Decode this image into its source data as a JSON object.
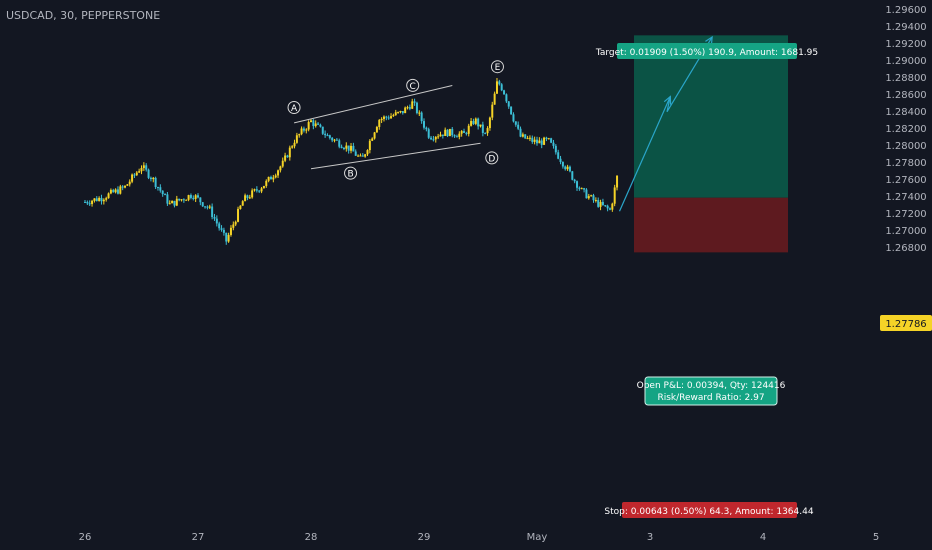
{
  "header": {
    "symbol_label": "USDCAD, 30, PEPPERSTONE"
  },
  "colors": {
    "background": "#131722",
    "axis_text": "#b2b5be",
    "grid": "#1e222d",
    "candle_up": "#f5d327",
    "candle_down": "#3cbfd6",
    "target_zone": "#0b5345",
    "stop_zone": "#5e1a1f",
    "target_label_bg": "#15a484",
    "stop_label_bg": "#c0272d",
    "projection_line": "#2aa5c9",
    "channel_line": "#c8c8c8",
    "price_tag_bg": "#f5d327",
    "price_tag_text": "#131722"
  },
  "position": {
    "target_text": "Target: 0.01909 (1.50%) 190.9, Amount: 1681.95",
    "stop_text": "Stop: 0.00643 (0.50%) 64.3, Amount: 1364.44",
    "pnl_line1": "Open P&L: 0.00394, Qty: 124416",
    "pnl_line2": "Risk/Reward Ratio: 2.97",
    "entry_price": 1.2738,
    "target_price": 1.2929,
    "stop_price": 1.26737
  },
  "current_price_label": "1.27786",
  "waves": [
    "A",
    "B",
    "C",
    "D",
    "E"
  ],
  "chart_data": {
    "type": "candlestick",
    "title": "USDCAD, 30, PEPPERSTONE",
    "y_ticks": [
      "1.29600",
      "1.29400",
      "1.29200",
      "1.29000",
      "1.28800",
      "1.28600",
      "1.28400",
      "1.28200",
      "1.28000",
      "1.27800",
      "1.27600",
      "1.27400",
      "1.27200",
      "1.27000",
      "1.26800"
    ],
    "x_ticks": [
      "26",
      "27",
      "28",
      "29",
      "May",
      "3",
      "4",
      "5"
    ],
    "ylim": [
      1.266,
      1.296
    ],
    "grid": false,
    "close_path": [
      [
        0.0,
        1.2733
      ],
      [
        0.15,
        1.2738
      ],
      [
        0.35,
        1.275
      ],
      [
        0.5,
        1.2775
      ],
      [
        0.6,
        1.276
      ],
      [
        0.75,
        1.273
      ],
      [
        0.95,
        1.2742
      ],
      [
        1.1,
        1.2725
      ],
      [
        1.25,
        1.2687
      ],
      [
        1.4,
        1.2735
      ],
      [
        1.6,
        1.2755
      ],
      [
        1.75,
        1.2778
      ],
      [
        1.85,
        1.2805
      ],
      [
        2.0,
        1.2828
      ],
      [
        2.15,
        1.281
      ],
      [
        2.35,
        1.2795
      ],
      [
        2.45,
        1.2782
      ],
      [
        2.6,
        1.283
      ],
      [
        2.8,
        1.2838
      ],
      [
        2.9,
        1.285
      ],
      [
        3.05,
        1.281
      ],
      [
        3.2,
        1.2815
      ],
      [
        3.35,
        1.2812
      ],
      [
        3.45,
        1.283
      ],
      [
        3.55,
        1.281
      ],
      [
        3.65,
        1.2875
      ],
      [
        3.7,
        1.2865
      ],
      [
        3.85,
        1.281
      ],
      [
        4.0,
        1.2803
      ],
      [
        4.1,
        1.2805
      ],
      [
        4.25,
        1.2775
      ],
      [
        4.4,
        1.2745
      ],
      [
        4.55,
        1.273
      ],
      [
        4.65,
        1.2723
      ],
      [
        4.72,
        1.277
      ]
    ],
    "wave_points": [
      {
        "label": "A",
        "x": 1.85,
        "y": 1.283
      },
      {
        "label": "B",
        "x": 2.35,
        "y": 1.2781
      },
      {
        "label": "C",
        "x": 2.9,
        "y": 1.2856
      },
      {
        "label": "D",
        "x": 3.6,
        "y": 1.2799
      },
      {
        "label": "E",
        "x": 3.65,
        "y": 1.2878
      }
    ],
    "channel_upper": [
      [
        1.85,
        1.2826
      ],
      [
        3.25,
        1.287
      ]
    ],
    "channel_lower": [
      [
        2.0,
        1.2772
      ],
      [
        3.5,
        1.2802
      ]
    ],
    "projection": [
      [
        4.73,
        1.2722
      ],
      [
        5.18,
        1.2857
      ],
      [
        5.15,
        1.2839
      ],
      [
        5.55,
        1.2927
      ]
    ]
  }
}
